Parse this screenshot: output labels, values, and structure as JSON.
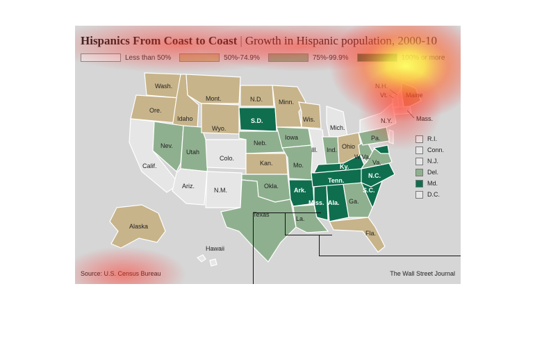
{
  "title": {
    "main": "Hispanics From Coast to Coast",
    "sub": "Growth in Hispanic population, 2000-10"
  },
  "legend": [
    {
      "label": "Less than 50%",
      "color": "#e6e6e6"
    },
    {
      "label": "50%-74.9%",
      "color": "#c8b48a"
    },
    {
      "label": "75%-99.9%",
      "color": "#8fb08f"
    },
    {
      "label": "100% or more",
      "color": "#0f6e4e"
    }
  ],
  "colors": {
    "lt50": "#e6e6e6",
    "p50": "#c8b48a",
    "p75": "#8fb08f",
    "p100": "#0f6e4e",
    "background": "#d6d6d6"
  },
  "states": {
    "wash": "Wash.",
    "ore": "Ore.",
    "idaho": "Idaho",
    "mont": "Mont.",
    "wyo": "Wyo.",
    "nd": "N.D.",
    "sd": "S.D.",
    "minn": "Minn.",
    "wis": "Wis.",
    "mich": "Mich.",
    "nev": "Nev.",
    "utah": "Utah",
    "calif": "Calif.",
    "colo": "Colo.",
    "neb": "Neb.",
    "iowa": "Iowa",
    "ill": "Ill.",
    "ind": "Ind.",
    "ohio": "Ohio",
    "pa": "Pa.",
    "ny": "N.Y.",
    "kan": "Kan.",
    "mo": "Mo.",
    "ky": "Ky.",
    "wva": "W.Va.",
    "va": "Va.",
    "ariz": "Ariz.",
    "nm": "N.M.",
    "okla": "Okla.",
    "ark": "Ark.",
    "tenn": "Tenn.",
    "nc": "N.C.",
    "sc": "S.C.",
    "texas": "Texas",
    "la": "La.",
    "miss": "Miss.",
    "ala": "Ala.",
    "ga": "Ga.",
    "fla": "Fla.",
    "alaska": "Alaska",
    "hawaii": "Hawaii",
    "nh": "N.H.",
    "vt": "Vt.",
    "maine": "Maine",
    "mass": "Mass."
  },
  "small_states": [
    {
      "label": "R.I.",
      "color": "#e6e6e6"
    },
    {
      "label": "Conn.",
      "color": "#e6e6e6"
    },
    {
      "label": "N.J.",
      "color": "#e6e6e6"
    },
    {
      "label": "Del.",
      "color": "#8fb08f"
    },
    {
      "label": "Md.",
      "color": "#0f6e4e"
    },
    {
      "label": "D.C.",
      "color": "#e6e6e6"
    }
  ],
  "source": "Source: U.S. Census Bureau",
  "credit": "The Wall Street Journal"
}
